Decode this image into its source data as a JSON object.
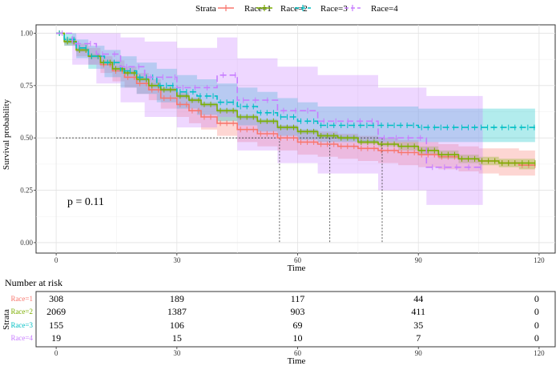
{
  "chart_data": {
    "type": "line",
    "subtype": "kaplan-meier",
    "legend": {
      "title": "Strata",
      "position": "top",
      "entries": [
        "Race=1",
        "Race=2",
        "Race=3",
        "Race=4"
      ]
    },
    "xlabel": "Time",
    "ylabel": "Survival probability",
    "xlim": [
      -5,
      124
    ],
    "ylim": [
      -0.05,
      1.04
    ],
    "x_ticks": [
      0,
      30,
      60,
      90,
      120
    ],
    "x_tick_labels": [
      "0",
      "30",
      "60",
      "90",
      "120"
    ],
    "y_ticks": [
      0,
      0.25,
      0.5,
      0.75,
      1.0
    ],
    "y_tick_labels": [
      "0.00",
      "0.25",
      "0.50",
      "0.75",
      "1.00"
    ],
    "grid": true,
    "annotation": "p = 0.11",
    "median_survival": {
      "y": 0.5,
      "times": [
        55.5,
        68,
        81
      ]
    },
    "series": [
      {
        "name": "Race=1",
        "color": "#F8766D",
        "dash": "solid",
        "times": [
          0,
          2,
          5,
          8,
          11,
          14,
          17,
          20,
          23,
          26,
          30,
          33,
          36,
          40,
          45,
          50,
          55,
          60,
          65,
          70,
          75,
          80,
          85,
          90,
          95,
          100,
          105,
          110,
          115,
          119
        ],
        "surv": [
          1.0,
          0.96,
          0.92,
          0.89,
          0.85,
          0.82,
          0.79,
          0.76,
          0.73,
          0.69,
          0.66,
          0.63,
          0.6,
          0.57,
          0.54,
          0.52,
          0.5,
          0.48,
          0.47,
          0.46,
          0.45,
          0.44,
          0.43,
          0.42,
          0.41,
          0.4,
          0.39,
          0.38,
          0.37,
          0.37
        ],
        "lower": [
          1.0,
          0.94,
          0.89,
          0.85,
          0.81,
          0.77,
          0.74,
          0.71,
          0.68,
          0.64,
          0.6,
          0.57,
          0.54,
          0.51,
          0.48,
          0.46,
          0.44,
          0.42,
          0.41,
          0.4,
          0.39,
          0.38,
          0.37,
          0.36,
          0.35,
          0.34,
          0.33,
          0.32,
          0.32,
          0.32
        ],
        "upper": [
          1.0,
          0.98,
          0.95,
          0.93,
          0.89,
          0.87,
          0.84,
          0.81,
          0.78,
          0.74,
          0.72,
          0.69,
          0.66,
          0.63,
          0.6,
          0.58,
          0.56,
          0.54,
          0.53,
          0.52,
          0.51,
          0.5,
          0.49,
          0.48,
          0.47,
          0.46,
          0.45,
          0.45,
          0.44,
          0.44
        ]
      },
      {
        "name": "Race=2",
        "color": "#7CAE00",
        "dash": "solid",
        "times": [
          0,
          2,
          5,
          8,
          11,
          14,
          17,
          20,
          23,
          26,
          30,
          33,
          36,
          40,
          45,
          50,
          55,
          60,
          65,
          70,
          75,
          80,
          85,
          90,
          95,
          100,
          105,
          110,
          115,
          119
        ],
        "surv": [
          1.0,
          0.96,
          0.92,
          0.89,
          0.86,
          0.83,
          0.81,
          0.78,
          0.75,
          0.73,
          0.7,
          0.68,
          0.66,
          0.63,
          0.6,
          0.58,
          0.55,
          0.53,
          0.51,
          0.5,
          0.48,
          0.47,
          0.46,
          0.44,
          0.42,
          0.4,
          0.39,
          0.38,
          0.38,
          0.38
        ],
        "lower": [
          1.0,
          0.95,
          0.91,
          0.88,
          0.85,
          0.82,
          0.8,
          0.77,
          0.74,
          0.72,
          0.69,
          0.67,
          0.65,
          0.62,
          0.59,
          0.57,
          0.54,
          0.52,
          0.5,
          0.49,
          0.47,
          0.46,
          0.44,
          0.42,
          0.4,
          0.38,
          0.37,
          0.36,
          0.35,
          0.35
        ],
        "upper": [
          1.0,
          0.97,
          0.93,
          0.9,
          0.87,
          0.84,
          0.82,
          0.79,
          0.76,
          0.74,
          0.71,
          0.69,
          0.67,
          0.64,
          0.61,
          0.59,
          0.56,
          0.54,
          0.52,
          0.51,
          0.49,
          0.48,
          0.48,
          0.46,
          0.44,
          0.42,
          0.41,
          0.4,
          0.4,
          0.4
        ]
      },
      {
        "name": "Race=3",
        "color": "#00BFC4",
        "dash": "8,4",
        "times": [
          0,
          2,
          5,
          8,
          12,
          16,
          20,
          25,
          30,
          35,
          40,
          45,
          50,
          55,
          60,
          65,
          70,
          80,
          90,
          100,
          110,
          119
        ],
        "surv": [
          1.0,
          0.97,
          0.93,
          0.89,
          0.86,
          0.82,
          0.79,
          0.75,
          0.72,
          0.7,
          0.67,
          0.65,
          0.62,
          0.6,
          0.58,
          0.56,
          0.56,
          0.56,
          0.55,
          0.55,
          0.55,
          0.55
        ],
        "lower": [
          1.0,
          0.94,
          0.88,
          0.83,
          0.79,
          0.74,
          0.71,
          0.67,
          0.64,
          0.61,
          0.58,
          0.56,
          0.53,
          0.51,
          0.49,
          0.48,
          0.48,
          0.48,
          0.48,
          0.48,
          0.48,
          0.48
        ],
        "upper": [
          1.0,
          1.0,
          0.97,
          0.94,
          0.92,
          0.89,
          0.86,
          0.83,
          0.8,
          0.78,
          0.76,
          0.74,
          0.72,
          0.69,
          0.67,
          0.65,
          0.65,
          0.65,
          0.64,
          0.64,
          0.64,
          0.64
        ]
      },
      {
        "name": "Race=4",
        "color": "#C77CFF",
        "dash": "8,4",
        "times": [
          0,
          4,
          10,
          16,
          22,
          30,
          40,
          45,
          55,
          65,
          80,
          92,
          106
        ],
        "surv": [
          1.0,
          0.95,
          0.9,
          0.84,
          0.79,
          0.74,
          0.8,
          0.68,
          0.63,
          0.58,
          0.5,
          0.36,
          0.36
        ],
        "lower": [
          1.0,
          0.85,
          0.76,
          0.67,
          0.6,
          0.55,
          0.6,
          0.44,
          0.38,
          0.33,
          0.25,
          0.18,
          0.18
        ],
        "upper": [
          1.0,
          1.0,
          1.0,
          0.98,
          0.96,
          0.93,
          0.98,
          0.88,
          0.84,
          0.8,
          0.74,
          0.7,
          0.7
        ]
      }
    ],
    "risk_table": {
      "title": "Number at risk",
      "y_axis_label": "Strata",
      "xlabel": "Time",
      "times": [
        0,
        30,
        60,
        90,
        120
      ],
      "time_labels": [
        "0",
        "30",
        "60",
        "90",
        "120"
      ],
      "rows": [
        {
          "label": "Race=1",
          "values": [
            "308",
            "189",
            "117",
            "44",
            "0"
          ]
        },
        {
          "label": "Race=2",
          "values": [
            "2069",
            "1387",
            "903",
            "411",
            "0"
          ]
        },
        {
          "label": "Race=3",
          "values": [
            "155",
            "106",
            "69",
            "35",
            "0"
          ]
        },
        {
          "label": "Race=4",
          "values": [
            "19",
            "15",
            "10",
            "7",
            "0"
          ]
        }
      ]
    }
  }
}
